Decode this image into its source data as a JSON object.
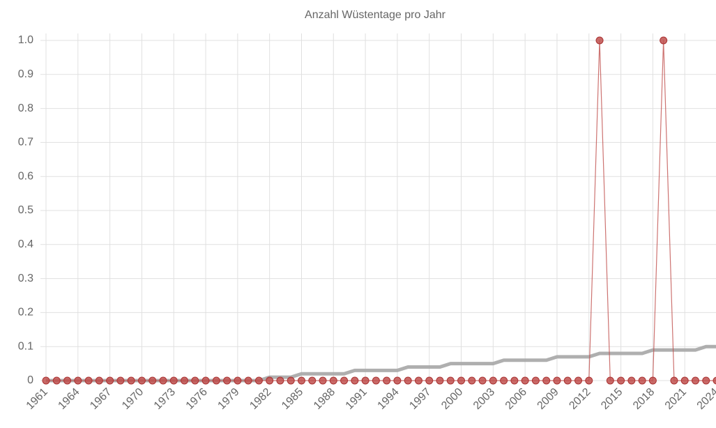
{
  "chart_data": {
    "type": "line",
    "title": "Anzahl Wüstentage pro Jahr",
    "categories": [
      "1961",
      null,
      null,
      "1964",
      null,
      null,
      "1967",
      null,
      null,
      "1970",
      null,
      null,
      "1973",
      null,
      null,
      "1976",
      null,
      null,
      "1979",
      null,
      null,
      "1982",
      null,
      null,
      "1985",
      null,
      null,
      "1988",
      null,
      null,
      "1991",
      null,
      null,
      "1994",
      null,
      null,
      "1997",
      null,
      null,
      "2000",
      null,
      null,
      "2003",
      null,
      null,
      "2006",
      null,
      null,
      "2009",
      null,
      null,
      "2012",
      null,
      null,
      "2015",
      null,
      null,
      "2018",
      null,
      null,
      "2021",
      null,
      null,
      "2024"
    ],
    "series": [
      {
        "color": "#c0504d",
        "values": [
          0,
          0,
          0,
          0,
          0,
          0,
          0,
          0,
          0,
          0,
          0,
          0,
          0,
          0,
          0,
          0,
          0,
          0,
          0,
          0,
          0,
          0,
          0,
          0,
          0,
          0,
          0,
          0,
          0,
          0,
          0,
          0,
          0,
          0,
          0,
          0,
          0,
          0,
          0,
          0,
          0,
          0,
          0,
          0,
          0,
          0,
          0,
          0,
          0,
          0,
          0,
          0,
          1,
          0,
          0,
          0,
          0,
          0,
          1,
          0,
          0,
          0,
          0,
          0
        ]
      },
      {
        "color": "#a6a6a6",
        "values": [
          0,
          0,
          0,
          0,
          0,
          0,
          0,
          0,
          0,
          0,
          0,
          0,
          0,
          0,
          0,
          0,
          0,
          0,
          0,
          0,
          0,
          0.01,
          0.01,
          0.01,
          0.02,
          0.02,
          0.02,
          0.02,
          0.02,
          0.03,
          0.03,
          0.03,
          0.03,
          0.03,
          0.04,
          0.04,
          0.04,
          0.04,
          0.05,
          0.05,
          0.05,
          0.05,
          0.05,
          0.06,
          0.06,
          0.06,
          0.06,
          0.06,
          0.07,
          0.07,
          0.07,
          0.07,
          0.08,
          0.08,
          0.08,
          0.08,
          0.08,
          0.09,
          0.09,
          0.09,
          0.09,
          0.09,
          0.1,
          0.1
        ]
      }
    ],
    "ylim": [
      0,
      1
    ],
    "yticks": [
      0,
      0.1,
      0.2,
      0.3,
      0.4,
      0.5,
      0.6,
      0.7,
      0.8,
      0.9,
      {
        "value": 1,
        "label": "1.0"
      }
    ],
    "grid": true
  }
}
